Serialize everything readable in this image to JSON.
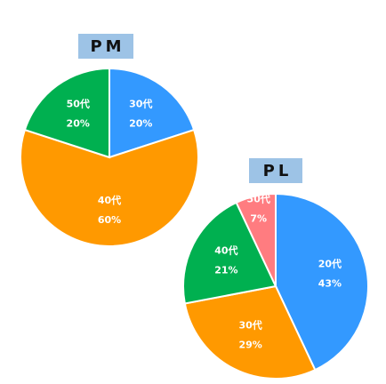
{
  "chart_data": [
    {
      "type": "pie",
      "title": "PM",
      "categories": [
        "30代",
        "40代",
        "50代"
      ],
      "values": [
        20,
        60,
        20
      ],
      "value_labels": [
        "20%",
        "60%",
        "20%"
      ],
      "colors": [
        "#3399ff",
        "#ff9900",
        "#00b050"
      ]
    },
    {
      "type": "pie",
      "title": "PL",
      "categories": [
        "20代",
        "30代",
        "40代",
        "50代"
      ],
      "values": [
        43,
        29,
        21,
        7
      ],
      "value_labels": [
        "43%",
        "29%",
        "21%",
        "7%"
      ],
      "colors": [
        "#3399ff",
        "#ff9900",
        "#00b050",
        "#ff7c80"
      ]
    }
  ]
}
